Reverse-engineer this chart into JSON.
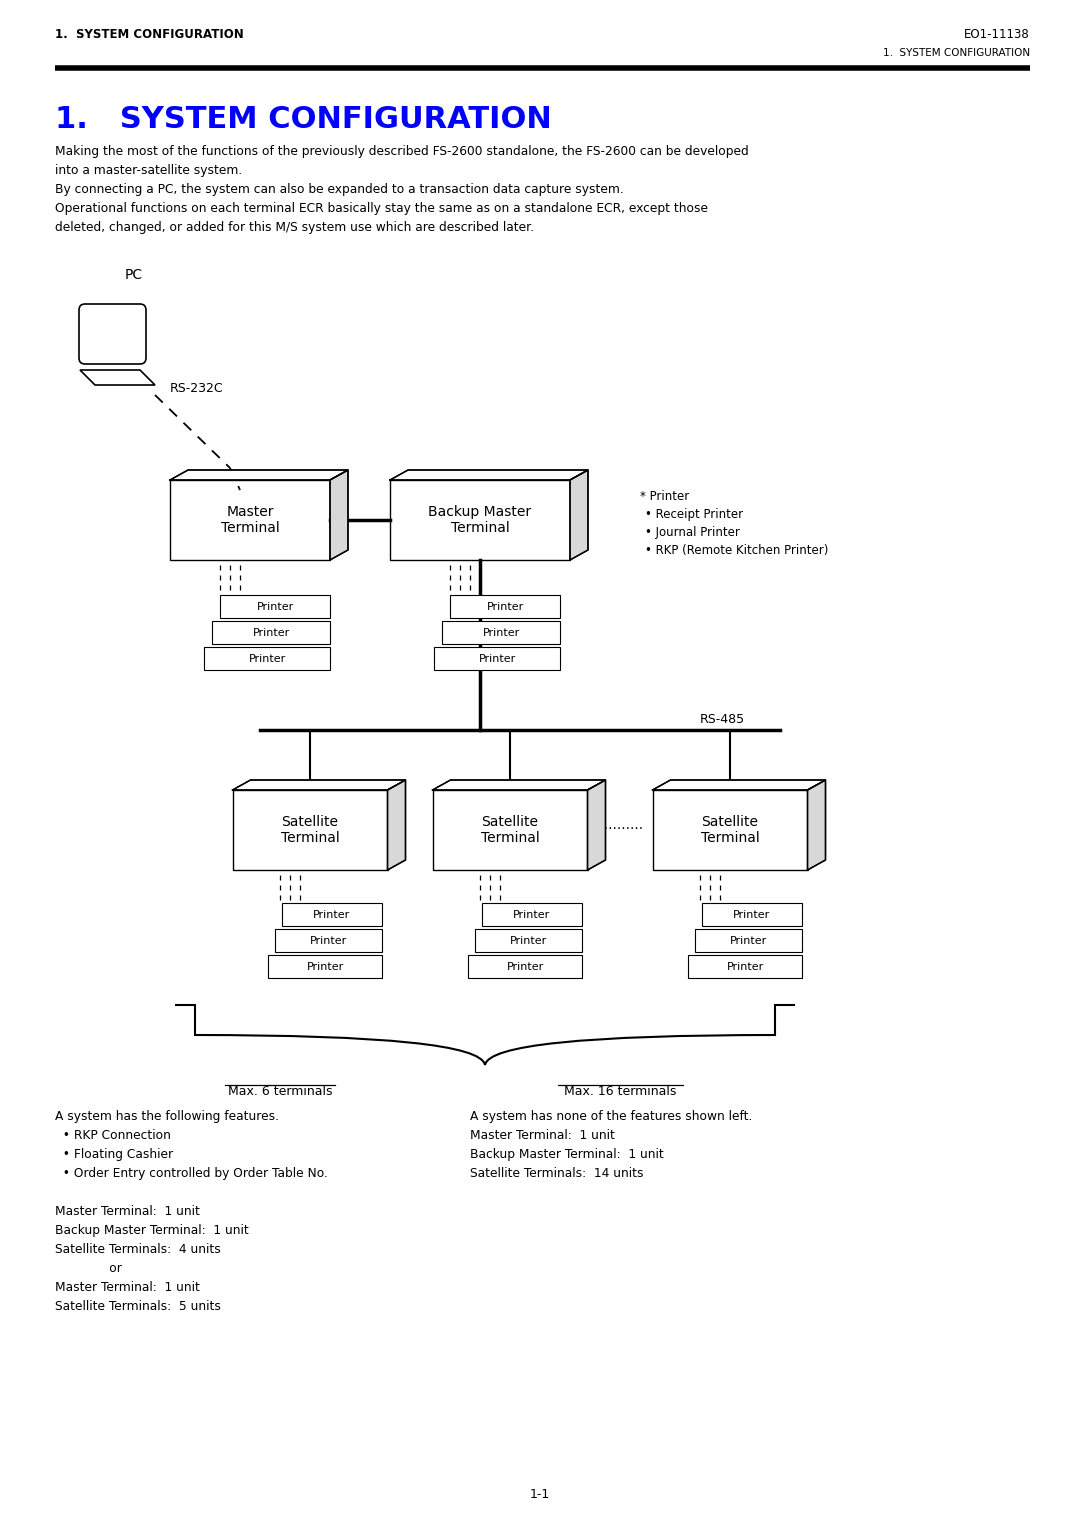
{
  "page_title_left": "1.  SYSTEM CONFIGURATION",
  "page_title_right": "EO1-11138",
  "page_subtitle_right": "1.  SYSTEM CONFIGURATION",
  "section_title": "1.   SYSTEM CONFIGURATION",
  "body_lines": [
    "Making the most of the functions of the previously described FS-2600 standalone, the FS-2600 can be developed",
    "into a master-satellite system.",
    "By connecting a PC, the system can also be expanded to a transaction data capture system.",
    "Operational functions on each terminal ECR basically stay the same as on a standalone ECR, except those",
    "deleted, changed, or added for this M/S system use which are described later."
  ],
  "pc_label": "PC",
  "rs232c_label": "RS-232C",
  "rs485_label": "RS-485",
  "master_label": "Master\nTerminal",
  "backup_label": "Backup Master\nTerminal",
  "satellite_labels": [
    "Satellite\nTerminal",
    "Satellite\nTerminal",
    "Satellite\nTerminal"
  ],
  "printer_label": "Printer",
  "dots_label": "...........",
  "printer_note_star": "* Printer",
  "printer_note_items": [
    "• Receipt Printer",
    "• Journal Printer",
    "• RKP (Remote Kitchen Printer)"
  ],
  "brace_label_left": "Max. 6 terminals",
  "brace_label_right": "Max. 16 terminals",
  "left_col_lines": [
    "A system has the following features.",
    "  • RKP Connection",
    "  • Floating Cashier",
    "  • Order Entry controlled by Order Table No.",
    "",
    "Master Terminal:  1 unit",
    "Backup Master Terminal:  1 unit",
    "Satellite Terminals:  4 units",
    "              or",
    "Master Terminal:  1 unit",
    "Satellite Terminals:  5 units"
  ],
  "right_col_lines": [
    "A system has none of the features shown left.",
    "Master Terminal:  1 unit",
    "Backup Master Terminal:  1 unit",
    "Satellite Terminals:  14 units"
  ],
  "page_number": "1-1",
  "bg_color": "#ffffff",
  "text_color": "#000000",
  "blue_color": "#0000ff"
}
